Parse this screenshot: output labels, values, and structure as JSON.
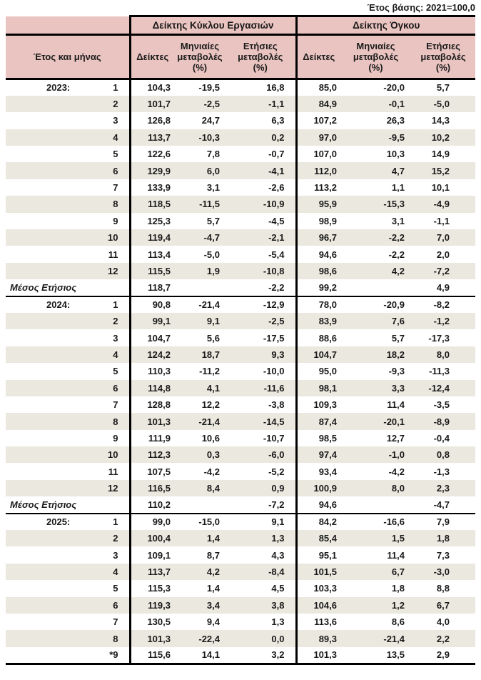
{
  "note": "Έτος βάσης: 2021=100,0",
  "colors": {
    "header_bg": "#e9c4c0",
    "stripe_bg": "#ebe9df",
    "border": "#000000"
  },
  "table": {
    "header": {
      "year_month_label": "Έτος και μήνας",
      "groups": [
        {
          "title": "Δείκτης Κύκλου Εργασιών",
          "columns": [
            "Δείκτες",
            "Μηνιαίες μεταβολές (%)",
            "Ετήσιες μεταβολές (%)"
          ]
        },
        {
          "title": "Δείκτης Όγκου",
          "columns": [
            "Δείκτες",
            "Μηνιαίες μεταβολές (%)",
            "Ετήσιες μεταβολές (%)"
          ]
        }
      ]
    },
    "average_label": "Μέσος Ετήσιος",
    "sections": [
      {
        "year": "2023:",
        "rows": [
          {
            "month": "1",
            "values": [
              "104,3",
              "-19,5",
              "16,8",
              "85,0",
              "-20,0",
              "5,7"
            ]
          },
          {
            "month": "2",
            "values": [
              "101,7",
              "-2,5",
              "-1,1",
              "84,9",
              "-0,1",
              "-5,0"
            ]
          },
          {
            "month": "3",
            "values": [
              "126,8",
              "24,7",
              "6,3",
              "107,2",
              "26,3",
              "14,3"
            ]
          },
          {
            "month": "4",
            "values": [
              "113,7",
              "-10,3",
              "0,2",
              "97,0",
              "-9,5",
              "10,2"
            ]
          },
          {
            "month": "5",
            "values": [
              "122,6",
              "7,8",
              "-0,7",
              "107,0",
              "10,3",
              "14,9"
            ]
          },
          {
            "month": "6",
            "values": [
              "129,9",
              "6,0",
              "-4,1",
              "112,0",
              "4,7",
              "15,2"
            ]
          },
          {
            "month": "7",
            "values": [
              "133,9",
              "3,1",
              "-2,6",
              "113,2",
              "1,1",
              "10,1"
            ]
          },
          {
            "month": "8",
            "values": [
              "118,5",
              "-11,5",
              "-10,9",
              "95,9",
              "-15,3",
              "-4,9"
            ]
          },
          {
            "month": "9",
            "values": [
              "125,3",
              "5,7",
              "-4,5",
              "98,9",
              "3,1",
              "-1,1"
            ]
          },
          {
            "month": "10",
            "values": [
              "119,4",
              "-4,7",
              "-2,1",
              "96,7",
              "-2,2",
              "7,0"
            ]
          },
          {
            "month": "11",
            "values": [
              "113,4",
              "-5,0",
              "-5,4",
              "94,6",
              "-2,2",
              "2,0"
            ]
          },
          {
            "month": "12",
            "values": [
              "115,5",
              "1,9",
              "-10,8",
              "98,6",
              "4,2",
              "-7,2"
            ]
          }
        ],
        "average": {
          "values": [
            "118,7",
            "",
            "-2,2",
            "99,2",
            "",
            "4,9"
          ]
        }
      },
      {
        "year": "2024:",
        "rows": [
          {
            "month": "1",
            "values": [
              "90,8",
              "-21,4",
              "-12,9",
              "78,0",
              "-20,9",
              "-8,2"
            ]
          },
          {
            "month": "2",
            "values": [
              "99,1",
              "9,1",
              "-2,5",
              "83,9",
              "7,6",
              "-1,2"
            ]
          },
          {
            "month": "3",
            "values": [
              "104,7",
              "5,6",
              "-17,5",
              "88,6",
              "5,7",
              "-17,3"
            ]
          },
          {
            "month": "4",
            "values": [
              "124,2",
              "18,7",
              "9,3",
              "104,7",
              "18,2",
              "8,0"
            ]
          },
          {
            "month": "5",
            "values": [
              "110,3",
              "-11,2",
              "-10,0",
              "95,0",
              "-9,3",
              "-11,3"
            ]
          },
          {
            "month": "6",
            "values": [
              "114,8",
              "4,1",
              "-11,6",
              "98,1",
              "3,3",
              "-12,4"
            ]
          },
          {
            "month": "7",
            "values": [
              "128,8",
              "12,2",
              "-3,8",
              "109,3",
              "11,4",
              "-3,5"
            ]
          },
          {
            "month": "8",
            "values": [
              "101,3",
              "-21,4",
              "-14,5",
              "87,4",
              "-20,1",
              "-8,9"
            ]
          },
          {
            "month": "9",
            "values": [
              "111,9",
              "10,6",
              "-10,7",
              "98,5",
              "12,7",
              "-0,4"
            ]
          },
          {
            "month": "10",
            "values": [
              "112,3",
              "0,3",
              "-6,0",
              "97,4",
              "-1,0",
              "0,8"
            ]
          },
          {
            "month": "11",
            "values": [
              "107,5",
              "-4,2",
              "-5,2",
              "93,4",
              "-4,2",
              "-1,3"
            ]
          },
          {
            "month": "12",
            "values": [
              "116,5",
              "8,4",
              "0,9",
              "100,9",
              "8,0",
              "2,3"
            ]
          }
        ],
        "average": {
          "values": [
            "110,2",
            "",
            "-7,2",
            "94,6",
            "",
            "-4,7"
          ]
        }
      },
      {
        "year": "2025:",
        "rows": [
          {
            "month": "1",
            "values": [
              "99,0",
              "-15,0",
              "9,1",
              "84,2",
              "-16,6",
              "7,9"
            ]
          },
          {
            "month": "2",
            "values": [
              "100,4",
              "1,4",
              "1,3",
              "85,4",
              "1,5",
              "1,8"
            ]
          },
          {
            "month": "3",
            "values": [
              "109,1",
              "8,7",
              "4,3",
              "95,1",
              "11,4",
              "7,3"
            ]
          },
          {
            "month": "4",
            "values": [
              "113,7",
              "4,2",
              "-8,4",
              "101,5",
              "6,7",
              "-3,0"
            ]
          },
          {
            "month": "5",
            "values": [
              "115,3",
              "1,4",
              "4,5",
              "103,3",
              "1,8",
              "8,8"
            ]
          },
          {
            "month": "6",
            "values": [
              "119,3",
              "3,4",
              "3,8",
              "104,6",
              "1,2",
              "6,7"
            ]
          },
          {
            "month": "7",
            "values": [
              "130,5",
              "9,4",
              "1,3",
              "113,6",
              "8,6",
              "4,0"
            ]
          },
          {
            "month": "8",
            "values": [
              "101,3",
              "-22,4",
              "0,0",
              "89,3",
              "-21,4",
              "2,2"
            ]
          },
          {
            "month": "*9",
            "values": [
              "115,6",
              "14,1",
              "3,2",
              "101,3",
              "13,5",
              "2,9"
            ]
          }
        ]
      }
    ]
  }
}
